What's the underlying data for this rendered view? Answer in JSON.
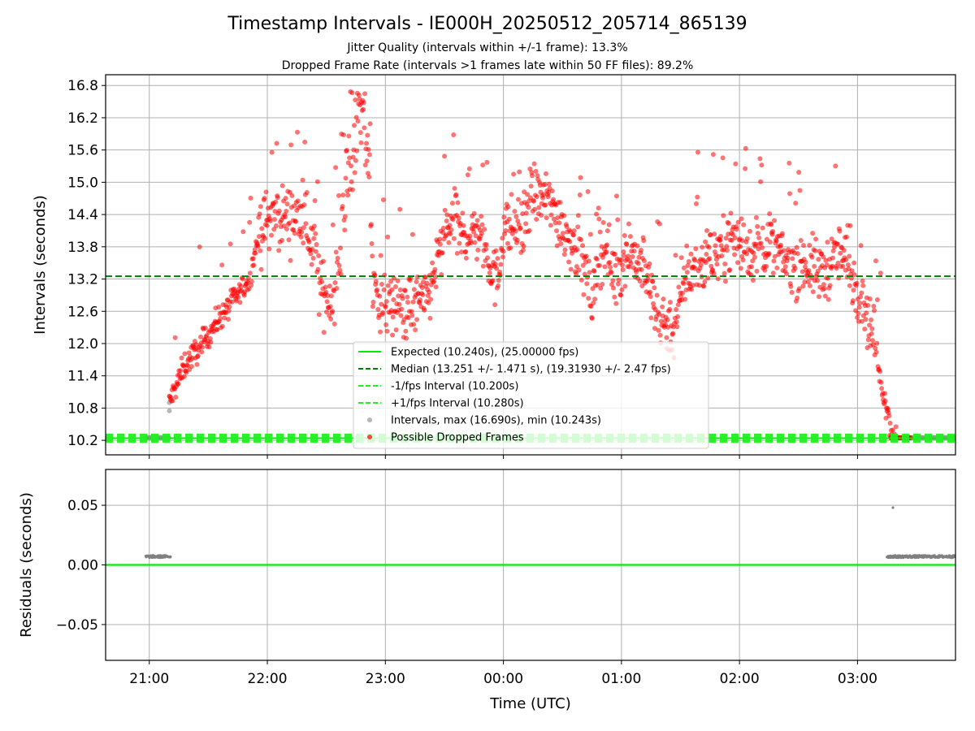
{
  "title": "Timestamp Intervals - IE000H_20250512_205714_865139",
  "subtitles": [
    "Jitter Quality (intervals within +/-1 frame): 13.3%",
    "Dropped Frame Rate (intervals >1 frames late within 50 FF files): 89.2%"
  ],
  "colors": {
    "expected": "#00ee00",
    "median": "#008000",
    "fps_bounds": "#22ee22",
    "intervals": "#999999",
    "dropped": "#ff0000",
    "residual_points": "#808080",
    "grid": "#b0b0b0"
  },
  "chart_data": [
    {
      "type": "scatter",
      "panel": "top",
      "xlabel": "",
      "ylabel": "Intervals (seconds)",
      "ylim": [
        9.93,
        17.0
      ],
      "x_tick_labels": [
        "21:00",
        "22:00",
        "23:00",
        "00:00",
        "01:00",
        "02:00",
        "03:00"
      ],
      "x_ticks_hours": [
        21,
        22,
        23,
        24,
        25,
        26,
        27
      ],
      "xlim_hours": [
        20.63,
        27.83
      ],
      "y_ticks": [
        "10.2",
        "10.8",
        "11.4",
        "12.0",
        "12.6",
        "13.2",
        "13.8",
        "14.4",
        "15.0",
        "15.6",
        "16.2",
        "16.8"
      ],
      "grid": true,
      "reference_lines": [
        {
          "name": "Expected (10.240s), (25.00000 fps)",
          "value": 10.24,
          "style": "solid"
        },
        {
          "name": "Median (13.251 +/- 1.471 s), (19.31930 +/- 2.47 fps)",
          "value": 13.251,
          "style": "dashed"
        },
        {
          "name": "-1/fps Interval (10.200s)",
          "value": 10.2,
          "style": "dashed"
        },
        {
          "name": "+1/fps Interval (10.280s)",
          "value": 10.28,
          "style": "dashed"
        }
      ],
      "scatter_series": [
        {
          "name": "Intervals, max (16.690s), min (10.243s)",
          "marker": "gray"
        },
        {
          "name": "Possible Dropped Frames",
          "marker": "red"
        }
      ],
      "legend_placement": "lower-center",
      "trend_points": [
        [
          20.97,
          10.25
        ],
        [
          21.12,
          10.25
        ],
        [
          21.17,
          10.9
        ],
        [
          21.3,
          11.6
        ],
        [
          21.45,
          12.0
        ],
        [
          21.6,
          12.5
        ],
        [
          21.75,
          12.9
        ],
        [
          21.85,
          13.2
        ],
        [
          21.92,
          14.0
        ],
        [
          22.0,
          14.3
        ],
        [
          22.15,
          14.4
        ],
        [
          22.3,
          14.3
        ],
        [
          22.4,
          13.8
        ],
        [
          22.45,
          13.0
        ],
        [
          22.55,
          12.8
        ],
        [
          22.62,
          13.8
        ],
        [
          22.7,
          15.5
        ],
        [
          22.78,
          16.2
        ],
        [
          22.85,
          15.8
        ],
        [
          22.9,
          13.0
        ],
        [
          23.0,
          12.7
        ],
        [
          23.2,
          12.7
        ],
        [
          23.35,
          12.8
        ],
        [
          23.45,
          13.6
        ],
        [
          23.55,
          14.3
        ],
        [
          23.65,
          14.0
        ],
        [
          23.8,
          14.1
        ],
        [
          23.95,
          13.1
        ],
        [
          24.0,
          14.2
        ],
        [
          24.15,
          14.1
        ],
        [
          24.25,
          14.8
        ],
        [
          24.4,
          14.6
        ],
        [
          24.55,
          14.0
        ],
        [
          24.65,
          13.7
        ],
        [
          24.75,
          12.8
        ],
        [
          24.85,
          13.9
        ],
        [
          24.95,
          13.2
        ],
        [
          25.05,
          13.8
        ],
        [
          25.15,
          13.5
        ],
        [
          25.25,
          13.0
        ],
        [
          25.3,
          12.5
        ],
        [
          25.45,
          12.3
        ],
        [
          25.55,
          13.3
        ],
        [
          25.75,
          13.6
        ],
        [
          25.95,
          14.0
        ],
        [
          26.1,
          13.7
        ],
        [
          26.25,
          13.9
        ],
        [
          26.4,
          13.5
        ],
        [
          26.55,
          13.5
        ],
        [
          26.7,
          13.3
        ],
        [
          26.85,
          13.7
        ],
        [
          26.95,
          13.3
        ],
        [
          27.05,
          12.8
        ],
        [
          27.15,
          12.0
        ],
        [
          27.2,
          11.3
        ],
        [
          27.25,
          10.8
        ],
        [
          27.28,
          10.4
        ],
        [
          27.33,
          10.25
        ],
        [
          27.45,
          10.25
        ],
        [
          27.83,
          10.25
        ]
      ]
    },
    {
      "type": "scatter",
      "panel": "bottom",
      "xlabel": "Time (UTC)",
      "ylabel": "Residuals (seconds)",
      "ylim": [
        -0.08,
        0.08
      ],
      "y_ticks": [
        "0.05",
        "0.00",
        "−0.05"
      ],
      "y_tick_values": [
        0.05,
        0.0,
        -0.05
      ],
      "grid": true,
      "zero_line": 0.0,
      "clusters": [
        {
          "x_start_hours": 20.97,
          "x_end_hours": 21.18,
          "value": 0.007
        },
        {
          "x_start_hours": 27.25,
          "x_end_hours": 27.83,
          "value": 0.007
        }
      ],
      "outliers": [
        {
          "x_hours": 27.3,
          "value": 0.048
        }
      ]
    }
  ]
}
